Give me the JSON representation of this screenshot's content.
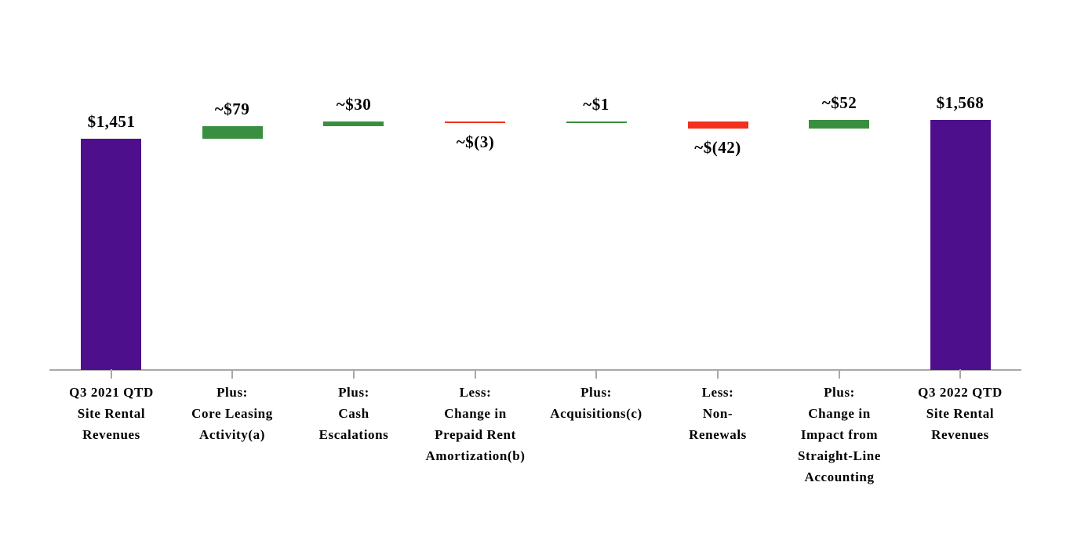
{
  "page": {
    "background_color": "#FFFFFF"
  },
  "chart_data": {
    "type": "bar",
    "subtype": "waterfall",
    "title": "",
    "legend": "none",
    "gridlines": false,
    "y_axis_visible": false,
    "axis": {
      "baseline_value": 0,
      "max_value": 1568,
      "axis_color": "#A8A8A8",
      "tick_color": "#A8A8A8"
    },
    "colors": {
      "total": "#4E0F8C",
      "increase": "#3A8E40",
      "decrease": "#F3301E"
    },
    "categories": [
      "Q3 2021 QTD\nSite Rental\nRevenues",
      "Plus:\nCore Leasing\nActivity(a)",
      "Plus:\nCash\nEscalations",
      "Less:\nChange in\nPrepaid Rent\nAmortization(b)",
      "Plus:\nAcquisitions(c)",
      "Less:\nNon-\nRenewals",
      "Plus:\nChange in\nImpact from\nStraight-Line\nAccounting",
      "Q3 2022 QTD\nSite Rental\nRevenues"
    ],
    "bars": [
      {
        "category": "Q3 2021 QTD\nSite Rental\nRevenues",
        "value_label": "$1,451",
        "value": 1451,
        "kind": "total",
        "label_position": "above"
      },
      {
        "category": "Plus:\nCore Leasing\nActivity(a)",
        "value_label": "~$79",
        "value": 79,
        "kind": "increase",
        "label_position": "above"
      },
      {
        "category": "Plus:\nCash\nEscalations",
        "value_label": "~$30",
        "value": 30,
        "kind": "increase",
        "label_position": "above"
      },
      {
        "category": "Less:\nChange in\nPrepaid Rent\nAmortization(b)",
        "value_label": "~$(3)",
        "value": -3,
        "kind": "decrease",
        "label_position": "below"
      },
      {
        "category": "Plus:\nAcquisitions(c)",
        "value_label": "~$1",
        "value": 1,
        "kind": "increase",
        "label_position": "above"
      },
      {
        "category": "Less:\nNon-\nRenewals",
        "value_label": "~$(42)",
        "value": -42,
        "kind": "decrease",
        "label_position": "below"
      },
      {
        "category": "Plus:\nChange in\nImpact from\nStraight-Line\nAccounting",
        "value_label": "~$52",
        "value": 52,
        "kind": "increase",
        "label_position": "above"
      },
      {
        "category": "Q3 2022 QTD\nSite Rental\nRevenues",
        "value_label": "$1,568",
        "value": 1568,
        "kind": "total",
        "label_position": "above"
      }
    ]
  }
}
